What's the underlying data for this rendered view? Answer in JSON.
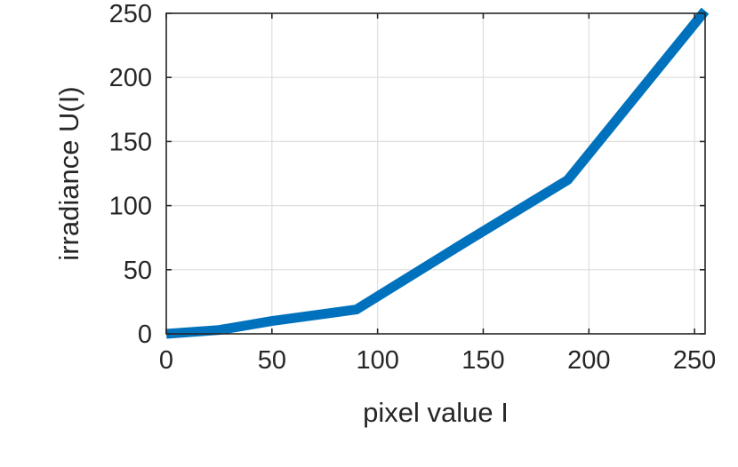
{
  "chart_data": {
    "type": "line",
    "title": "",
    "xlabel": "pixel value I",
    "ylabel": "irradiance U(I)",
    "xlim": [
      0,
      255
    ],
    "ylim": [
      0,
      250
    ],
    "xticks": [
      0,
      50,
      100,
      150,
      200,
      250
    ],
    "yticks": [
      0,
      50,
      100,
      150,
      200,
      250
    ],
    "grid": true,
    "series": [
      {
        "color": "#0072bd",
        "x": [
          0,
          25,
          50,
          90,
          140,
          190,
          255
        ],
        "y": [
          0,
          3,
          10,
          19,
          70,
          120,
          252
        ]
      }
    ]
  }
}
